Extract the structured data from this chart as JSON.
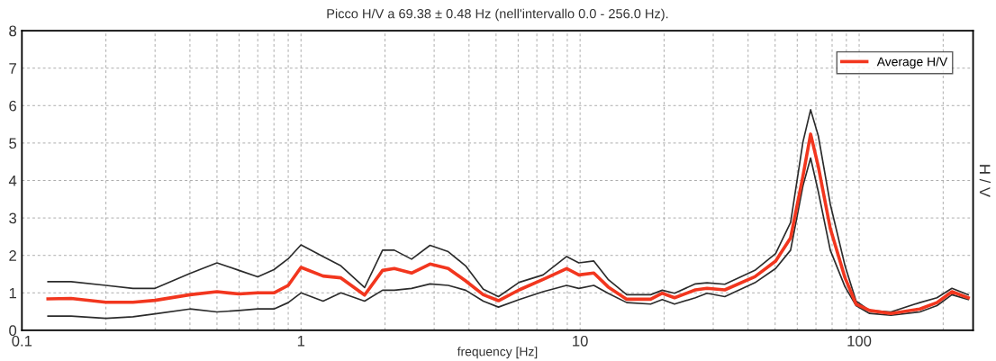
{
  "chart_data": {
    "type": "line",
    "title": "Picco H/V a 69.38 ± 0.48 Hz (nell'intervallo 0.0 - 256.0 Hz).",
    "xlabel": "frequency [Hz]",
    "y2label": "H / V",
    "x": [
      0.124,
      0.15,
      0.2,
      0.25,
      0.3,
      0.4,
      0.5,
      0.6,
      0.7,
      0.8,
      0.9,
      1.0,
      1.2,
      1.39,
      1.69,
      1.96,
      2.16,
      2.49,
      2.9,
      3.37,
      3.89,
      4.5,
      5.1,
      6.05,
      7.37,
      8.95,
      9.9,
      11.2,
      12.6,
      14.7,
      17.9,
      19.7,
      21.8,
      25.9,
      28.5,
      33,
      42.3,
      50.2,
      56.8,
      62.9,
      67,
      71.4,
      78.8,
      89,
      97.5,
      109,
      130,
      165,
      190,
      215,
      246
    ],
    "series": [
      {
        "color": "#2b2b2b",
        "values": [
          1.3,
          1.3,
          1.2,
          1.12,
          1.12,
          1.52,
          1.8,
          1.6,
          1.43,
          1.62,
          1.91,
          2.28,
          1.97,
          1.72,
          1.14,
          2.14,
          2.14,
          1.9,
          2.27,
          2.1,
          1.72,
          1.1,
          0.9,
          1.28,
          1.48,
          1.97,
          1.8,
          1.85,
          1.36,
          0.95,
          0.95,
          1.07,
          0.99,
          1.24,
          1.27,
          1.23,
          1.6,
          2.05,
          2.88,
          5.03,
          5.89,
          5.19,
          3.37,
          1.72,
          0.78,
          0.53,
          0.49,
          0.74,
          0.87,
          1.12,
          0.95
        ]
      },
      {
        "color": "#2b2b2b",
        "values": [
          0.38,
          0.38,
          0.32,
          0.36,
          0.44,
          0.57,
          0.49,
          0.53,
          0.57,
          0.57,
          0.74,
          1.0,
          0.78,
          1.0,
          0.78,
          1.07,
          1.07,
          1.12,
          1.24,
          1.2,
          1.07,
          0.78,
          0.62,
          0.82,
          1.03,
          1.2,
          1.12,
          1.2,
          0.99,
          0.74,
          0.7,
          0.82,
          0.7,
          0.87,
          0.99,
          0.9,
          1.27,
          1.65,
          2.14,
          3.86,
          4.6,
          3.7,
          2.14,
          1.16,
          0.66,
          0.45,
          0.4,
          0.49,
          0.66,
          0.95,
          0.82
        ]
      },
      {
        "name": "Average H/V",
        "color": "#f2361e",
        "values": [
          0.84,
          0.85,
          0.75,
          0.75,
          0.8,
          0.95,
          1.03,
          0.97,
          1.0,
          1.0,
          1.2,
          1.68,
          1.45,
          1.4,
          0.94,
          1.6,
          1.65,
          1.53,
          1.77,
          1.65,
          1.32,
          0.95,
          0.79,
          1.08,
          1.36,
          1.65,
          1.48,
          1.53,
          1.16,
          0.83,
          0.83,
          0.99,
          0.87,
          1.08,
          1.12,
          1.08,
          1.43,
          1.85,
          2.47,
          4.12,
          5.24,
          4.37,
          2.72,
          1.4,
          0.7,
          0.53,
          0.45,
          0.57,
          0.74,
          1.03,
          0.87
        ]
      }
    ],
    "log": "x",
    "xlim": [
      0.1,
      256
    ],
    "xticks": [
      0.1,
      1,
      10,
      100
    ],
    "ylim": [
      0,
      8
    ],
    "yticks": [
      0,
      1,
      2,
      3,
      4,
      5,
      6,
      7,
      8
    ],
    "grid": true,
    "legend": "top right"
  }
}
